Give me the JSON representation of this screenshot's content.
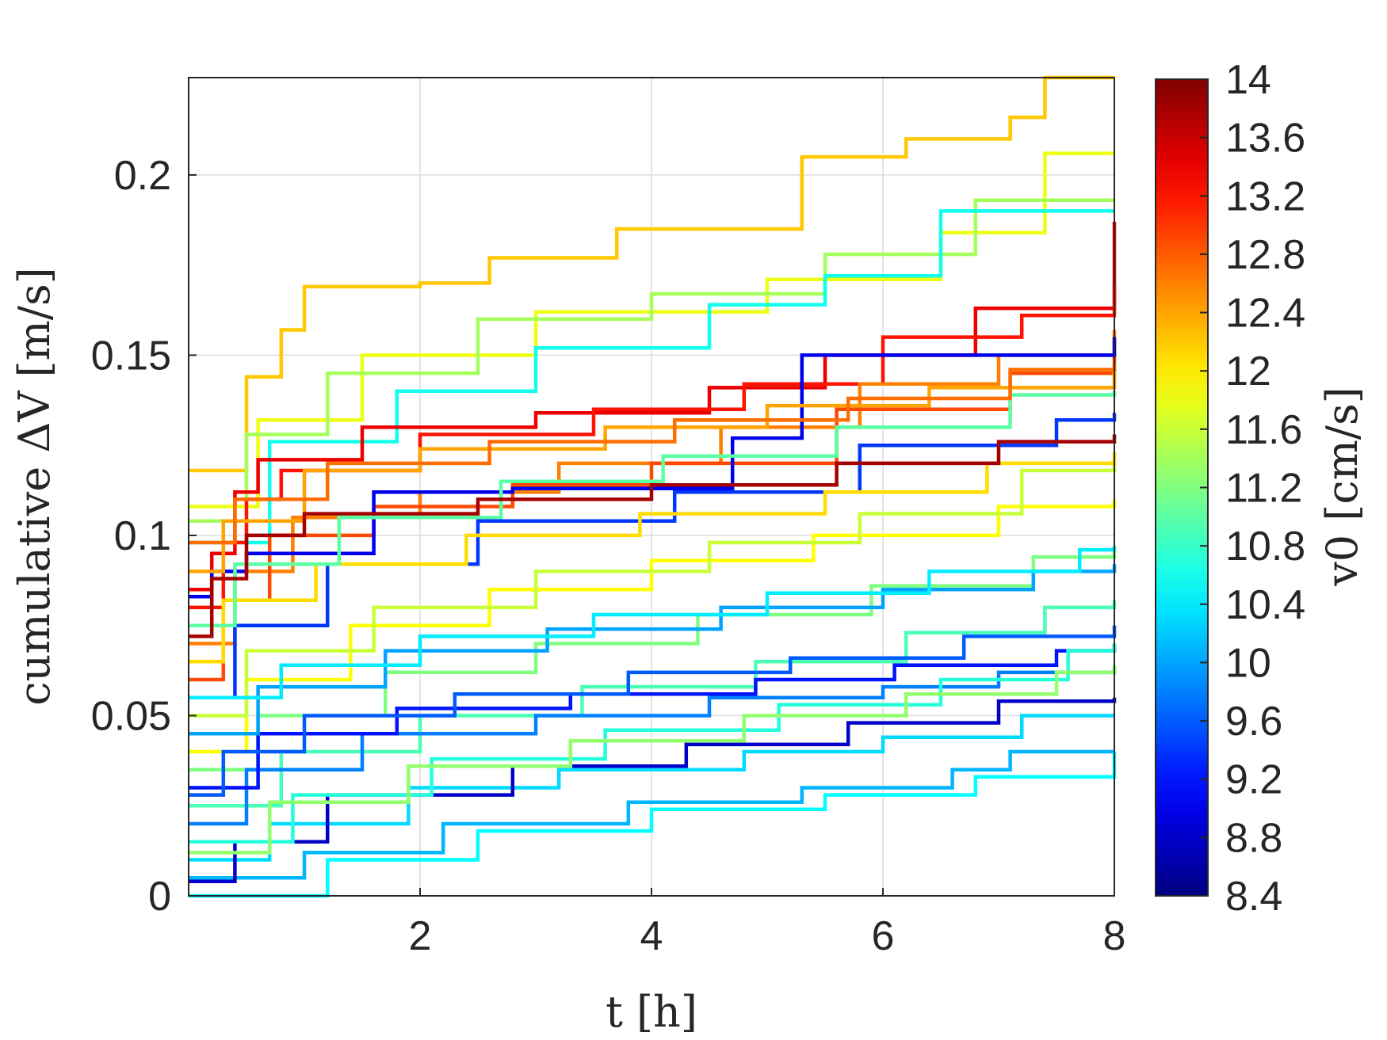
{
  "chart_data": {
    "type": "line",
    "xlabel": "t [h]",
    "ylabel": "cumulative ΔV [m/s]",
    "xlim": [
      0,
      8
    ],
    "ylim": [
      0,
      0.227
    ],
    "x_ticks": [
      2,
      4,
      6,
      8
    ],
    "x_tick_labels": [
      "2",
      "4",
      "6",
      "8"
    ],
    "y_ticks": [
      0,
      0.05,
      0.1,
      0.15,
      0.2
    ],
    "y_tick_labels": [
      "0",
      "0.05",
      "0.1",
      "0.15",
      "0.2"
    ],
    "grid": true,
    "colorbar": {
      "label": "v0 [cm/s]",
      "colormap": "jet",
      "range": [
        8.4,
        14
      ],
      "ticks": [
        14,
        13.6,
        13.2,
        12.8,
        12.4,
        12,
        11.6,
        11.2,
        10.8,
        10.4,
        10,
        9.6,
        9.2,
        8.8,
        8.4
      ],
      "tick_labels": [
        "14",
        "13.6",
        "13.2",
        "12.8",
        "12.4",
        "12",
        "11.6",
        "11.2",
        "10.8",
        "10.4",
        "10",
        "9.6",
        "9.2",
        "8.8",
        "8.4"
      ]
    },
    "series": [
      {
        "v0": 12.2,
        "x": [
          0,
          0.5,
          0.8,
          1.0,
          2.0,
          2.6,
          3.7,
          5.3,
          6.2,
          7.1,
          7.4,
          8.0
        ],
        "y": [
          0.118,
          0.144,
          0.157,
          0.169,
          0.17,
          0.177,
          0.185,
          0.205,
          0.21,
          0.216,
          0.227,
          0.227
        ]
      },
      {
        "v0": 11.8,
        "x": [
          0,
          0.6,
          1.5,
          3.0,
          5.0,
          6.5,
          7.4,
          8.0
        ],
        "y": [
          0.108,
          0.132,
          0.15,
          0.162,
          0.171,
          0.184,
          0.206,
          0.206
        ]
      },
      {
        "v0": 11.4,
        "x": [
          0,
          0.5,
          1.2,
          2.5,
          4.0,
          5.5,
          6.8,
          8.0
        ],
        "y": [
          0.104,
          0.128,
          0.145,
          0.16,
          0.167,
          0.178,
          0.193,
          0.193
        ]
      },
      {
        "v0": 10.6,
        "x": [
          0,
          0.7,
          1.8,
          3.0,
          4.5,
          5.5,
          6.5,
          8.0
        ],
        "y": [
          0.098,
          0.126,
          0.14,
          0.152,
          0.164,
          0.172,
          0.19,
          0.19
        ]
      },
      {
        "v0": 13.4,
        "x": [
          0,
          0.2,
          0.4,
          0.6,
          1.5,
          3.0,
          4.5,
          5.5,
          6.8,
          8.0
        ],
        "y": [
          0.085,
          0.095,
          0.112,
          0.121,
          0.13,
          0.134,
          0.141,
          0.15,
          0.163,
          0.187
        ]
      },
      {
        "v0": 13.2,
        "x": [
          0,
          0.3,
          0.5,
          0.8,
          2.0,
          3.5,
          4.8,
          6.0,
          7.2,
          8.0
        ],
        "y": [
          0.08,
          0.098,
          0.11,
          0.118,
          0.128,
          0.135,
          0.142,
          0.155,
          0.161,
          0.17
        ]
      },
      {
        "v0": 12.6,
        "x": [
          0,
          0.4,
          0.9,
          2.0,
          3.2,
          4.6,
          5.8,
          7.0,
          8.0
        ],
        "y": [
          0.07,
          0.09,
          0.105,
          0.112,
          0.12,
          0.13,
          0.142,
          0.15,
          0.157
        ]
      },
      {
        "v0": 12.9,
        "x": [
          0,
          0.3,
          0.7,
          1.6,
          2.8,
          4.0,
          5.6,
          7.1,
          8.0
        ],
        "y": [
          0.06,
          0.082,
          0.1,
          0.108,
          0.114,
          0.12,
          0.135,
          0.145,
          0.15
        ]
      },
      {
        "v0": 9.0,
        "x": [
          0,
          0.2,
          0.5,
          1.6,
          2.8,
          4.7,
          5.3,
          8.0
        ],
        "y": [
          0.083,
          0.09,
          0.095,
          0.112,
          0.113,
          0.127,
          0.15,
          0.155
        ]
      },
      {
        "v0": 9.4,
        "x": [
          0,
          0.4,
          1.2,
          2.5,
          4.2,
          5.8,
          7.5,
          8.0
        ],
        "y": [
          0.055,
          0.075,
          0.092,
          0.104,
          0.112,
          0.125,
          0.132,
          0.134
        ]
      },
      {
        "v0": 12.4,
        "x": [
          0,
          0.3,
          1.0,
          2.0,
          3.6,
          5.0,
          6.4,
          8.0
        ],
        "y": [
          0.09,
          0.104,
          0.118,
          0.124,
          0.13,
          0.136,
          0.141,
          0.146
        ]
      },
      {
        "v0": 11.9,
        "x": [
          0,
          0.5,
          1.4,
          2.6,
          4.0,
          5.4,
          7.0,
          8.0
        ],
        "y": [
          0.04,
          0.06,
          0.075,
          0.085,
          0.093,
          0.1,
          0.108,
          0.11
        ]
      },
      {
        "v0": 11.2,
        "x": [
          0,
          0.6,
          1.7,
          3.0,
          4.4,
          5.9,
          7.3,
          8.0
        ],
        "y": [
          0.035,
          0.05,
          0.062,
          0.07,
          0.078,
          0.086,
          0.094,
          0.097
        ]
      },
      {
        "v0": 10.9,
        "x": [
          0,
          0.8,
          2.0,
          3.4,
          4.9,
          6.2,
          7.4,
          8.0
        ],
        "y": [
          0.025,
          0.04,
          0.05,
          0.058,
          0.065,
          0.073,
          0.08,
          0.082
        ]
      },
      {
        "v0": 10.3,
        "x": [
          0,
          0.7,
          1.9,
          3.2,
          4.8,
          6.0,
          7.2,
          8.0
        ],
        "y": [
          0.01,
          0.02,
          0.03,
          0.035,
          0.04,
          0.044,
          0.05,
          0.05
        ]
      },
      {
        "v0": 10.1,
        "x": [
          0,
          1.0,
          2.2,
          3.8,
          5.3,
          6.6,
          7.1,
          8.0
        ],
        "y": [
          0.005,
          0.012,
          0.02,
          0.026,
          0.03,
          0.035,
          0.04,
          0.04
        ]
      },
      {
        "v0": 9.8,
        "x": [
          0,
          0.5,
          1.5,
          3.0,
          4.5,
          6.0,
          7.0,
          8.0
        ],
        "y": [
          0.02,
          0.035,
          0.045,
          0.05,
          0.055,
          0.058,
          0.062,
          0.063
        ]
      },
      {
        "v0": 9.2,
        "x": [
          0,
          0.6,
          1.8,
          3.3,
          4.9,
          6.1,
          7.5,
          8.0
        ],
        "y": [
          0.03,
          0.045,
          0.052,
          0.056,
          0.06,
          0.064,
          0.068,
          0.07
        ]
      },
      {
        "v0": 8.8,
        "x": [
          0,
          0.4,
          1.2,
          2.8,
          4.3,
          5.7,
          7.0,
          8.0
        ],
        "y": [
          0.004,
          0.015,
          0.028,
          0.036,
          0.042,
          0.048,
          0.054,
          0.055
        ]
      },
      {
        "v0": 11.6,
        "x": [
          0,
          0.5,
          1.6,
          3.0,
          4.5,
          5.8,
          7.2,
          8.0
        ],
        "y": [
          0.05,
          0.068,
          0.08,
          0.09,
          0.098,
          0.106,
          0.118,
          0.12
        ]
      },
      {
        "v0": 12.1,
        "x": [
          0,
          0.3,
          1.1,
          2.4,
          3.9,
          5.5,
          6.9,
          8.0
        ],
        "y": [
          0.065,
          0.082,
          0.092,
          0.1,
          0.106,
          0.112,
          0.12,
          0.123
        ]
      },
      {
        "v0": 10.7,
        "x": [
          0,
          0.9,
          2.1,
          3.6,
          5.1,
          6.5,
          7.6,
          8.0
        ],
        "y": [
          0.015,
          0.028,
          0.038,
          0.046,
          0.053,
          0.06,
          0.068,
          0.07
        ]
      },
      {
        "v0": 10.5,
        "x": [
          0,
          1.2,
          2.5,
          4.0,
          5.5,
          6.8,
          8.0
        ],
        "y": [
          0.0,
          0.01,
          0.018,
          0.024,
          0.028,
          0.033,
          0.04
        ]
      },
      {
        "v0": 11.0,
        "x": [
          0,
          0.4,
          1.3,
          2.7,
          4.1,
          5.6,
          7.1,
          8.0
        ],
        "y": [
          0.075,
          0.092,
          0.105,
          0.115,
          0.122,
          0.13,
          0.139,
          0.14
        ]
      },
      {
        "v0": 13.8,
        "x": [
          0,
          0.2,
          0.5,
          1.0,
          2.5,
          4.0,
          5.6,
          7.0,
          8.0
        ],
        "y": [
          0.072,
          0.088,
          0.1,
          0.106,
          0.11,
          0.114,
          0.12,
          0.126,
          0.128
        ]
      },
      {
        "v0": 10.0,
        "x": [
          0,
          0.6,
          1.7,
          3.1,
          4.6,
          6.0,
          7.3,
          8.0
        ],
        "y": [
          0.045,
          0.058,
          0.068,
          0.074,
          0.08,
          0.085,
          0.09,
          0.092
        ]
      },
      {
        "v0": 11.3,
        "x": [
          0,
          0.7,
          1.9,
          3.3,
          4.8,
          6.2,
          7.5,
          8.0
        ],
        "y": [
          0.012,
          0.026,
          0.036,
          0.043,
          0.05,
          0.056,
          0.062,
          0.064
        ]
      },
      {
        "v0": 9.6,
        "x": [
          0,
          0.3,
          1.0,
          2.3,
          3.8,
          5.2,
          6.7,
          8.0
        ],
        "y": [
          0.028,
          0.04,
          0.05,
          0.056,
          0.062,
          0.066,
          0.072,
          0.075
        ]
      },
      {
        "v0": 12.7,
        "x": [
          0,
          0.4,
          1.2,
          2.6,
          4.2,
          5.7,
          7.1,
          8.0
        ],
        "y": [
          0.098,
          0.11,
          0.12,
          0.126,
          0.132,
          0.138,
          0.146,
          0.148
        ]
      },
      {
        "v0": 10.4,
        "x": [
          0,
          0.8,
          2.0,
          3.5,
          5.0,
          6.4,
          7.7,
          8.0
        ],
        "y": [
          0.055,
          0.064,
          0.072,
          0.078,
          0.084,
          0.09,
          0.096,
          0.097
        ]
      }
    ]
  }
}
